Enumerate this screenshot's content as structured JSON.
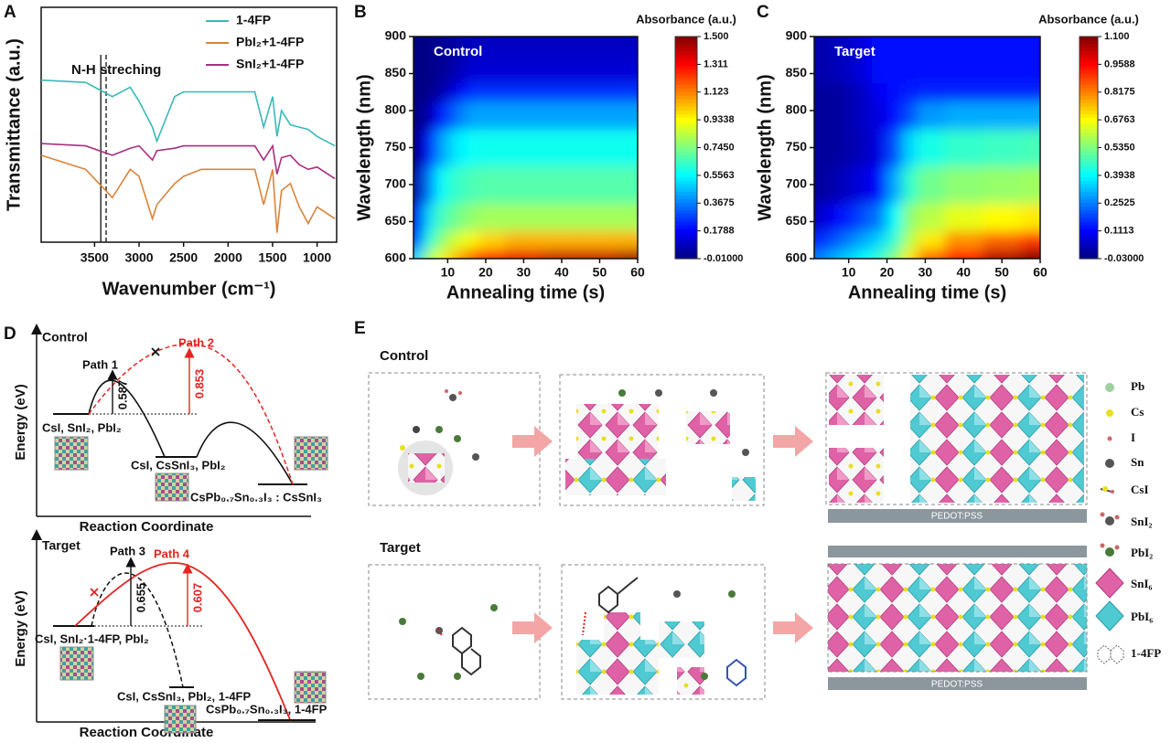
{
  "panel_labels": [
    "A",
    "B",
    "C",
    "D",
    "E"
  ],
  "chart_data": [
    {
      "type": "line",
      "xlabel": "Wavenumber (cm⁻¹)",
      "ylabel": "Transmittance (a.u.)",
      "annotation": "N-H streching",
      "x": [
        4100,
        3600,
        3300,
        3100,
        3000,
        2850,
        2800,
        2600,
        2500,
        2300,
        1700,
        1600,
        1500,
        1450,
        1400,
        1300,
        1200,
        1100,
        1000,
        800
      ],
      "series": [
        {
          "name": "1-4FP",
          "color": "#3bb8b8",
          "values": [
            6.9,
            6.8,
            6.2,
            6.6,
            6.0,
            4.9,
            4.3,
            6.2,
            6.4,
            6.4,
            6.4,
            4.9,
            6.2,
            4.5,
            5.6,
            5.0,
            4.9,
            4.8,
            4.5,
            4.1
          ]
        },
        {
          "name": "PbI₂+1-4FP",
          "color": "#d9853b",
          "values": [
            3.7,
            3.1,
            1.9,
            3.1,
            2.8,
            1.0,
            1.6,
            2.5,
            2.8,
            3.1,
            3.1,
            1.6,
            3.1,
            0.4,
            2.2,
            2.5,
            1.5,
            0.8,
            1.5,
            1.0
          ]
        },
        {
          "name": "SnI₂+1-4FP",
          "color": "#a8307f",
          "values": [
            4.2,
            4.1,
            3.7,
            4.0,
            4.1,
            3.5,
            3.9,
            4.0,
            4.1,
            4.1,
            4.1,
            3.5,
            4.1,
            2.9,
            3.6,
            3.7,
            3.3,
            3.1,
            3.2,
            2.7
          ]
        }
      ],
      "vlines": [
        {
          "value": 3430,
          "style": "solid"
        },
        {
          "value": 3370,
          "style": "dashed"
        }
      ],
      "xlim": [
        4100,
        780
      ],
      "xticks": [
        3500,
        3000,
        2500,
        2000,
        1500,
        1000
      ],
      "ylim": [
        0,
        10
      ],
      "legend": "upper right"
    },
    {
      "type": "heatmap",
      "annotation": "Control",
      "xlabel": "Annealing time (s)",
      "ylabel": "Wavelength (nm)",
      "x": [
        2,
        5,
        8,
        11,
        14,
        17,
        20,
        30,
        40,
        50,
        60
      ],
      "y": [
        600,
        625,
        650,
        700,
        750,
        800,
        825,
        850,
        875,
        900
      ],
      "values": [
        [
          0.5,
          0.8,
          0.9,
          1.0,
          1.1,
          1.2,
          1.3,
          1.35,
          1.4,
          1.4,
          1.45
        ],
        [
          0.3,
          0.6,
          0.75,
          0.85,
          0.9,
          0.95,
          1.0,
          1.05,
          1.05,
          1.05,
          1.05
        ],
        [
          0.15,
          0.5,
          0.65,
          0.7,
          0.75,
          0.78,
          0.8,
          0.8,
          0.8,
          0.8,
          0.8
        ],
        [
          0.05,
          0.35,
          0.55,
          0.62,
          0.65,
          0.67,
          0.68,
          0.68,
          0.68,
          0.68,
          0.68
        ],
        [
          0.0,
          0.2,
          0.4,
          0.5,
          0.55,
          0.57,
          0.58,
          0.58,
          0.58,
          0.58,
          0.58
        ],
        [
          0.0,
          0.05,
          0.2,
          0.3,
          0.38,
          0.42,
          0.42,
          0.42,
          0.42,
          0.42,
          0.42
        ],
        [
          0.0,
          0.0,
          0.05,
          0.12,
          0.2,
          0.25,
          0.25,
          0.25,
          0.25,
          0.25,
          0.25
        ],
        [
          0.0,
          0.0,
          0.02,
          0.05,
          0.1,
          0.12,
          0.12,
          0.12,
          0.12,
          0.12,
          0.12
        ],
        [
          0.0,
          0.0,
          0.02,
          0.04,
          0.07,
          0.1,
          0.1,
          0.1,
          0.1,
          0.1,
          0.1
        ],
        [
          0.0,
          0.0,
          0.02,
          0.03,
          0.06,
          0.08,
          0.08,
          0.08,
          0.08,
          0.08,
          0.08
        ]
      ],
      "xlim": [
        1,
        60
      ],
      "xticks": [
        10,
        20,
        30,
        40,
        50,
        60
      ],
      "ylim": [
        600,
        900
      ],
      "yticks": [
        600,
        650,
        700,
        750,
        800,
        850,
        900
      ],
      "colorbar": {
        "title": "Absorbance (a.u.)",
        "lim": [
          -0.01,
          1.5
        ],
        "ticks": [
          {
            "value": 1.5,
            "label": "1.500"
          },
          1.311,
          1.123,
          0.9338,
          {
            "value": 0.745,
            "label": "0.7450"
          },
          0.5563,
          0.3675,
          0.1788,
          {
            "value": -0.01,
            "label": "-0.01000"
          }
        ]
      }
    },
    {
      "type": "heatmap",
      "annotation": "Target",
      "xlabel": "Annealing time (s)",
      "ylabel": "Wavelength (nm)",
      "x": [
        2,
        6,
        10,
        14,
        18,
        22,
        26,
        30,
        40,
        50,
        60
      ],
      "y": [
        600,
        625,
        650,
        700,
        750,
        800,
        825,
        850,
        875,
        900
      ],
      "values": [
        [
          0.25,
          0.3,
          0.35,
          0.4,
          0.45,
          0.55,
          0.7,
          0.85,
          0.95,
          1.05,
          1.1
        ],
        [
          0.15,
          0.2,
          0.25,
          0.3,
          0.35,
          0.45,
          0.6,
          0.7,
          0.8,
          0.85,
          0.9
        ],
        [
          0.05,
          0.1,
          0.15,
          0.2,
          0.25,
          0.4,
          0.55,
          0.6,
          0.65,
          0.68,
          0.7
        ],
        [
          0.0,
          0.02,
          0.05,
          0.08,
          0.12,
          0.3,
          0.45,
          0.52,
          0.55,
          0.56,
          0.57
        ],
        [
          0.0,
          0.0,
          0.02,
          0.04,
          0.08,
          0.2,
          0.35,
          0.42,
          0.45,
          0.46,
          0.47
        ],
        [
          0.0,
          0.0,
          0.02,
          0.05,
          0.08,
          0.12,
          0.2,
          0.28,
          0.3,
          0.3,
          0.3
        ],
        [
          0.0,
          0.0,
          0.02,
          0.05,
          0.1,
          0.12,
          0.14,
          0.15,
          0.15,
          0.15,
          0.15
        ],
        [
          0.02,
          0.03,
          0.05,
          0.08,
          0.12,
          0.12,
          0.12,
          0.12,
          0.12,
          0.12,
          0.12
        ],
        [
          0.02,
          0.03,
          0.05,
          0.08,
          0.12,
          0.12,
          0.12,
          0.12,
          0.12,
          0.12,
          0.12
        ],
        [
          0.02,
          0.03,
          0.05,
          0.08,
          0.12,
          0.12,
          0.12,
          0.12,
          0.12,
          0.12,
          0.12
        ]
      ],
      "xlim": [
        1,
        60
      ],
      "xticks": [
        10,
        20,
        30,
        40,
        50,
        60
      ],
      "ylim": [
        600,
        900
      ],
      "yticks": [
        600,
        650,
        700,
        750,
        800,
        850,
        900
      ],
      "colorbar": {
        "title": "Absorbance (a.u.)",
        "lim": [
          -0.03,
          1.1
        ],
        "ticks": [
          {
            "value": 1.1,
            "label": "1.100"
          },
          0.9588,
          0.8175,
          0.6763,
          {
            "value": 0.535,
            "label": "0.5350"
          },
          0.3938,
          0.2525,
          0.1113,
          {
            "value": -0.03,
            "label": "-0.03000"
          }
        ]
      }
    }
  ],
  "diagram_d": {
    "xlabel": "Reaction Coordinate",
    "ylabel": "Energy (eV)",
    "control": {
      "title": "Control",
      "paths": [
        "Path 1",
        "Path 2"
      ],
      "barriers": [
        0.587,
        0.853
      ],
      "states": [
        "CsI, SnI₂, PbI₂",
        "CsI, CsSnI₃, PbI₂",
        "CsPb₀.₇Sn₀.₃I₃ : CsSnI₃"
      ]
    },
    "target": {
      "title": "Target",
      "paths": [
        "Path 3",
        "Path 4"
      ],
      "barriers": [
        0.655,
        0.607
      ],
      "states": [
        "CsI, SnI₂·1-4FP, PbI₂",
        "CsI, CsSnI₃, PbI₂, 1-4FP",
        "CsPb₀.₇Sn₀.₃I₃, 1-4FP"
      ]
    }
  },
  "diagram_e": {
    "rows": [
      "Control",
      "Target"
    ],
    "substrates": [
      "PEDOT:PSS",
      "PEDOT:PSS"
    ],
    "legend": [
      "Pb",
      "Cs",
      "I",
      "Sn",
      "CsI",
      "SnI₂",
      "PbI₂",
      "SnI₆",
      "PbI₆",
      "1-4FP"
    ]
  }
}
